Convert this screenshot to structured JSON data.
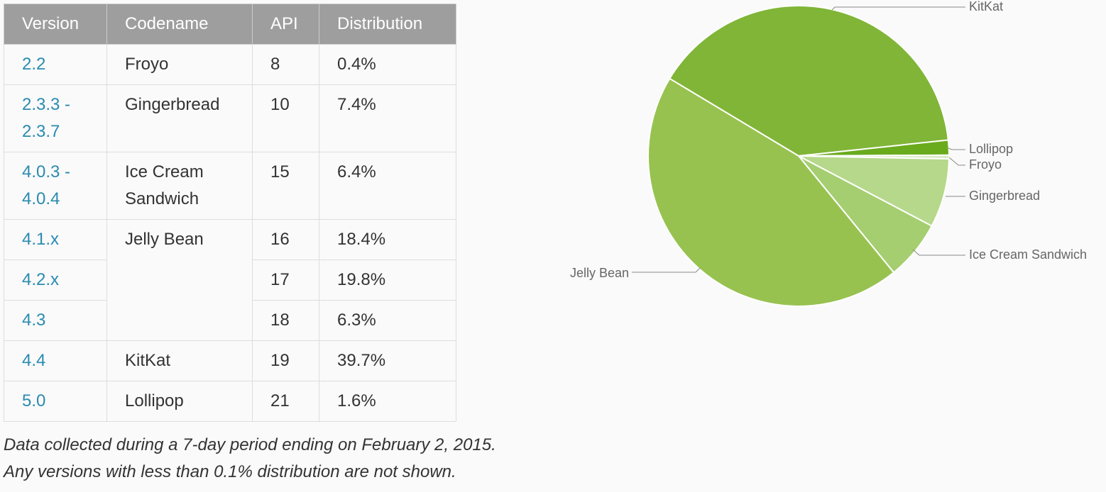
{
  "table": {
    "header": [
      "Version",
      "Codename",
      "API",
      "Distribution"
    ],
    "groups": [
      {
        "codename": "Froyo",
        "rows": [
          {
            "version": "2.2",
            "api": "8",
            "distribution": "0.4%"
          }
        ]
      },
      {
        "codename": "Gingerbread",
        "rows": [
          {
            "version": "2.3.3 - 2.3.7",
            "api": "10",
            "distribution": "7.4%"
          }
        ]
      },
      {
        "codename": "Ice Cream Sandwich",
        "rows": [
          {
            "version": "4.0.3 - 4.0.4",
            "api": "15",
            "distribution": "6.4%"
          }
        ]
      },
      {
        "codename": "Jelly Bean",
        "rows": [
          {
            "version": "4.1.x",
            "api": "16",
            "distribution": "18.4%"
          },
          {
            "version": "4.2.x",
            "api": "17",
            "distribution": "19.8%"
          },
          {
            "version": "4.3",
            "api": "18",
            "distribution": "6.3%"
          }
        ]
      },
      {
        "codename": "KitKat",
        "rows": [
          {
            "version": "4.4",
            "api": "19",
            "distribution": "39.7%"
          }
        ]
      },
      {
        "codename": "Lollipop",
        "rows": [
          {
            "version": "5.0",
            "api": "21",
            "distribution": "1.6%"
          }
        ]
      }
    ]
  },
  "chart_data": {
    "type": "pie",
    "categories": [
      "KitKat",
      "Lollipop",
      "Froyo",
      "Gingerbread",
      "Ice Cream Sandwich",
      "Jelly Bean"
    ],
    "values": [
      39.7,
      1.6,
      0.4,
      7.4,
      6.4,
      44.5
    ],
    "colors": [
      "#80b537",
      "#6aab1e",
      "#dcebc6",
      "#b6d88b",
      "#a5ce70",
      "#97c250"
    ]
  },
  "footnote": [
    "Data collected during a 7-day period ending on February 2, 2015.",
    "Any versions with less than 0.1% distribution are not shown."
  ]
}
